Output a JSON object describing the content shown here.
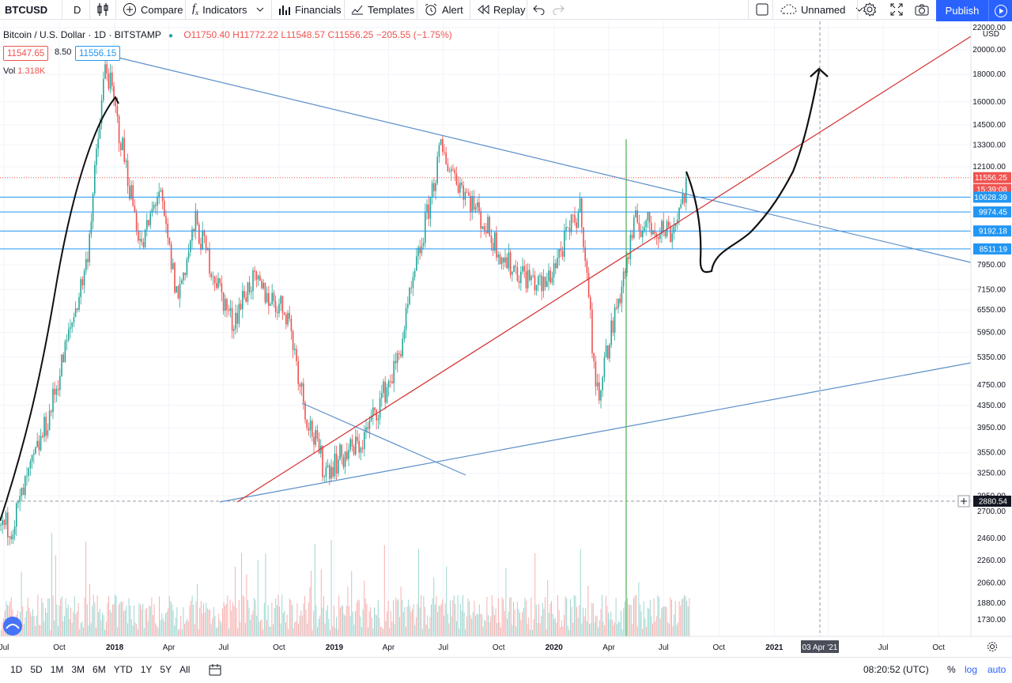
{
  "toolbar": {
    "symbol": "BTCUSD",
    "interval": "D",
    "compare": "Compare",
    "indicators": "Indicators",
    "financials": "Financials",
    "templates": "Templates",
    "alert": "Alert",
    "replay": "Replay",
    "layout_name": "Unnamed",
    "publish": "Publish"
  },
  "legend": {
    "title": "Bitcoin / U.S. Dollar · 1D · BITSTAMP",
    "ohlc": "O11750.40 H11772.22 L11548.57 C11556.25 −205.55 (−1.75%)",
    "bid": "11547.65",
    "spread": "8.50",
    "ask": "11556.15",
    "vol_label": "Vol",
    "vol_value": "1.318K"
  },
  "price_scale": {
    "currency": "USD",
    "ticks": [
      "22000.00",
      "20000.00",
      "18000.00",
      "16000.00",
      "14500.00",
      "13300.00",
      "12100.00",
      "7950.00",
      "7150.00",
      "6550.00",
      "5950.00",
      "5350.00",
      "4750.00",
      "4350.00",
      "3950.00",
      "3550.00",
      "3250.00",
      "2950.00",
      "2700.00",
      "2460.00",
      "2260.00",
      "2060.00",
      "1880.00",
      "1730.00"
    ],
    "tags": [
      {
        "text": "11556.25",
        "color": "#ef5350"
      },
      {
        "text": "15:39:08",
        "color": "#ef5350"
      },
      {
        "text": "10628.39",
        "color": "#2196f3"
      },
      {
        "text": "9974.45",
        "color": "#2196f3"
      },
      {
        "text": "9192.18",
        "color": "#2196f3"
      },
      {
        "text": "8511.19",
        "color": "#2196f3"
      },
      {
        "text": "2880.54",
        "color": "#131722"
      }
    ]
  },
  "time_axis": {
    "labels": [
      "Jul",
      "Oct",
      "2018",
      "Apr",
      "Jul",
      "Oct",
      "2019",
      "Apr",
      "Jul",
      "Oct",
      "2020",
      "Apr",
      "Jul",
      "Oct",
      "2021",
      "Apr",
      "Jul",
      "Oct"
    ],
    "crosshair_label": "03 Apr '21"
  },
  "bottom": {
    "ranges": [
      "1D",
      "5D",
      "1M",
      "3M",
      "6M",
      "YTD",
      "1Y",
      "5Y",
      "All"
    ],
    "clock": "08:20:52 (UTC)",
    "percent": "%",
    "log": "log",
    "auto": "auto"
  },
  "colors": {
    "up": "#26a69a",
    "down": "#ef5350",
    "trendline_blue": "#5b8fc9",
    "trendline_red": "#d32f2f",
    "accent": "#2962ff",
    "vertical_green": "#4caf50"
  },
  "chart_data": {
    "type": "candlestick",
    "symbol": "BTCUSD",
    "exchange": "BITSTAMP",
    "interval": "1D",
    "scale": "log",
    "y_range": [
      1700,
      22000
    ],
    "x_range": [
      "2017-07",
      "2021-10"
    ],
    "last": {
      "open": 11750.4,
      "high": 11772.22,
      "low": 11548.57,
      "close": 11556.25,
      "change": -205.55,
      "change_pct": -1.75
    },
    "price_path": [
      {
        "date": "2017-07",
        "price": 2600
      },
      {
        "date": "2017-09",
        "price": 4200
      },
      {
        "date": "2017-11",
        "price": 8000
      },
      {
        "date": "2017-12-17",
        "price": 19000
      },
      {
        "date": "2018-02",
        "price": 8500
      },
      {
        "date": "2018-03",
        "price": 11000
      },
      {
        "date": "2018-04",
        "price": 6900
      },
      {
        "date": "2018-05",
        "price": 9500
      },
      {
        "date": "2018-07",
        "price": 6200
      },
      {
        "date": "2018-08",
        "price": 7400
      },
      {
        "date": "2018-10",
        "price": 6500
      },
      {
        "date": "2018-11",
        "price": 4200
      },
      {
        "date": "2018-12",
        "price": 3300
      },
      {
        "date": "2019-02",
        "price": 3700
      },
      {
        "date": "2019-04",
        "price": 5200
      },
      {
        "date": "2019-06-26",
        "price": 13000
      },
      {
        "date": "2019-08",
        "price": 10500
      },
      {
        "date": "2019-10",
        "price": 8000
      },
      {
        "date": "2019-12",
        "price": 7200
      },
      {
        "date": "2020-02",
        "price": 10200
      },
      {
        "date": "2020-03-12",
        "price": 4500
      },
      {
        "date": "2020-05",
        "price": 9500
      },
      {
        "date": "2020-07",
        "price": 9200
      },
      {
        "date": "2020-08",
        "price": 11800
      }
    ],
    "horizontal_levels": [
      11556.25,
      10628.39,
      9974.45,
      9192.18,
      8511.19,
      2880.54
    ],
    "annotations": [
      "blue descending trendline from 2017 high",
      "red ascending trendline from 2018 low",
      "projected path: dip toward ~7700 then rally above 18000 by Apr 2021"
    ]
  }
}
